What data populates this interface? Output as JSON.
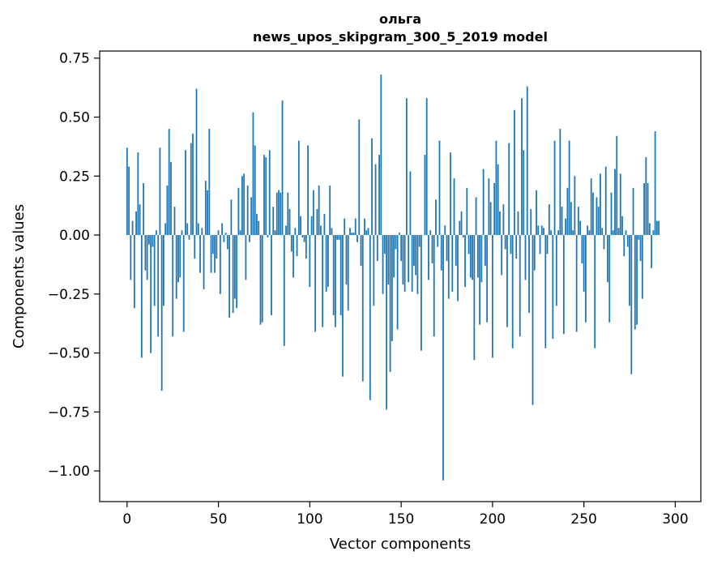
{
  "chart_data": {
    "type": "bar",
    "title": "ольга",
    "subtitle": "news_upos_skipgram_300_5_2019 model",
    "xlabel": "Vector components",
    "ylabel": "Components values",
    "xlim": [
      -15,
      314
    ],
    "ylim": [
      -1.13,
      0.78
    ],
    "xticks": [
      0,
      50,
      100,
      150,
      200,
      250,
      300
    ],
    "xtick_labels": [
      "0",
      "50",
      "100",
      "150",
      "200",
      "250",
      "300"
    ],
    "yticks": [
      -1.0,
      -0.75,
      -0.5,
      -0.25,
      0.0,
      0.25,
      0.5,
      0.75
    ],
    "ytick_labels": [
      "−1.00",
      "−0.75",
      "−0.50",
      "−0.25",
      "0.00",
      "0.25",
      "0.50",
      "0.75"
    ],
    "grid": false,
    "bar_color": "#1f77b4",
    "values": [
      0.37,
      0.29,
      -0.19,
      0.06,
      -0.31,
      0.1,
      0.35,
      0.13,
      -0.52,
      0.22,
      -0.15,
      -0.19,
      -0.04,
      -0.5,
      -0.05,
      -0.3,
      0.02,
      -0.43,
      0.37,
      -0.66,
      -0.3,
      0.05,
      0.21,
      0.45,
      0.31,
      -0.43,
      0.12,
      -0.27,
      -0.2,
      -0.18,
      0.02,
      -0.41,
      0.36,
      0.05,
      -0.02,
      0.39,
      0.43,
      -0.1,
      0.62,
      0.05,
      -0.16,
      0.03,
      -0.23,
      0.23,
      0.19,
      0.45,
      -0.16,
      -0.08,
      -0.16,
      -0.1,
      0.02,
      -0.25,
      0.05,
      -0.03,
      0.01,
      -0.06,
      -0.35,
      0.15,
      -0.33,
      -0.27,
      -0.31,
      0.2,
      0.02,
      0.25,
      0.26,
      -0.19,
      0.21,
      -0.03,
      0.16,
      0.52,
      0.38,
      0.09,
      0.06,
      -0.38,
      -0.37,
      0.34,
      0.33,
      -0.01,
      0.36,
      -0.34,
      0.12,
      0.02,
      0.18,
      0.19,
      0.18,
      0.57,
      -0.47,
      0.04,
      0.18,
      0.11,
      -0.07,
      -0.18,
      0.03,
      -0.09,
      0.4,
      0.08,
      -0.01,
      -0.03,
      -0.1,
      0.38,
      -0.22,
      0.08,
      0.19,
      -0.41,
      0.11,
      0.21,
      0.04,
      -0.39,
      0.09,
      -0.24,
      -0.22,
      0.21,
      0.03,
      -0.34,
      -0.39,
      -0.02,
      -0.02,
      -0.34,
      -0.6,
      0.07,
      -0.21,
      -0.32,
      0.03,
      0.01,
      0.01,
      0.07,
      -0.03,
      0.49,
      -0.13,
      -0.62,
      0.07,
      0.02,
      0.03,
      -0.7,
      0.41,
      -0.3,
      0.3,
      -0.11,
      0.34,
      0.68,
      -0.25,
      -0.08,
      -0.74,
      -0.21,
      -0.58,
      -0.45,
      -0.18,
      -0.06,
      -0.4,
      0.01,
      -0.11,
      -0.21,
      -0.24,
      0.58,
      -0.2,
      0.27,
      -0.24,
      -0.13,
      -0.17,
      -0.25,
      -0.05,
      -0.49,
      0.0,
      0.34,
      0.58,
      -0.19,
      0.02,
      -0.12,
      -0.43,
      0.15,
      -0.05,
      0.4,
      -0.15,
      -1.04,
      0.04,
      -0.11,
      -0.27,
      0.35,
      -0.24,
      0.24,
      -0.13,
      -0.28,
      0.06,
      0.1,
      -0.01,
      -0.22,
      0.2,
      -0.08,
      -0.18,
      -0.19,
      -0.53,
      0.16,
      -0.18,
      -0.38,
      -0.2,
      0.28,
      -0.13,
      -0.37,
      0.24,
      0.14,
      -0.52,
      0.22,
      0.4,
      0.3,
      0.1,
      -0.17,
      0.13,
      -0.06,
      -0.39,
      0.39,
      -0.08,
      -0.48,
      0.53,
      -0.1,
      0.1,
      -0.43,
      0.58,
      0.36,
      -0.19,
      0.63,
      -0.33,
      0.11,
      -0.72,
      -0.15,
      0.19,
      0.04,
      -0.08,
      0.04,
      0.03,
      -0.48,
      -0.08,
      0.13,
      0.02,
      -0.44,
      0.4,
      -0.3,
      0.02,
      0.45,
      0.12,
      -0.42,
      0.07,
      0.2,
      0.4,
      0.14,
      0.02,
      0.25,
      -0.41,
      0.12,
      0.06,
      -0.12,
      -0.24,
      -0.37,
      0.04,
      0.02,
      0.24,
      0.18,
      -0.48,
      0.16,
      0.12,
      0.26,
      0.03,
      -0.06,
      0.29,
      -0.2,
      -0.37,
      0.18,
      0.02,
      0.28,
      0.42,
      0.03,
      0.26,
      0.08,
      -0.09,
      0.02,
      -0.05,
      -0.3,
      -0.59,
      0.2,
      -0.4,
      -0.38,
      -0.02,
      -0.11,
      -0.27,
      0.22,
      0.33,
      0.22,
      0.05,
      -0.14,
      0.02,
      0.44,
      0.06,
      0.06
    ]
  }
}
